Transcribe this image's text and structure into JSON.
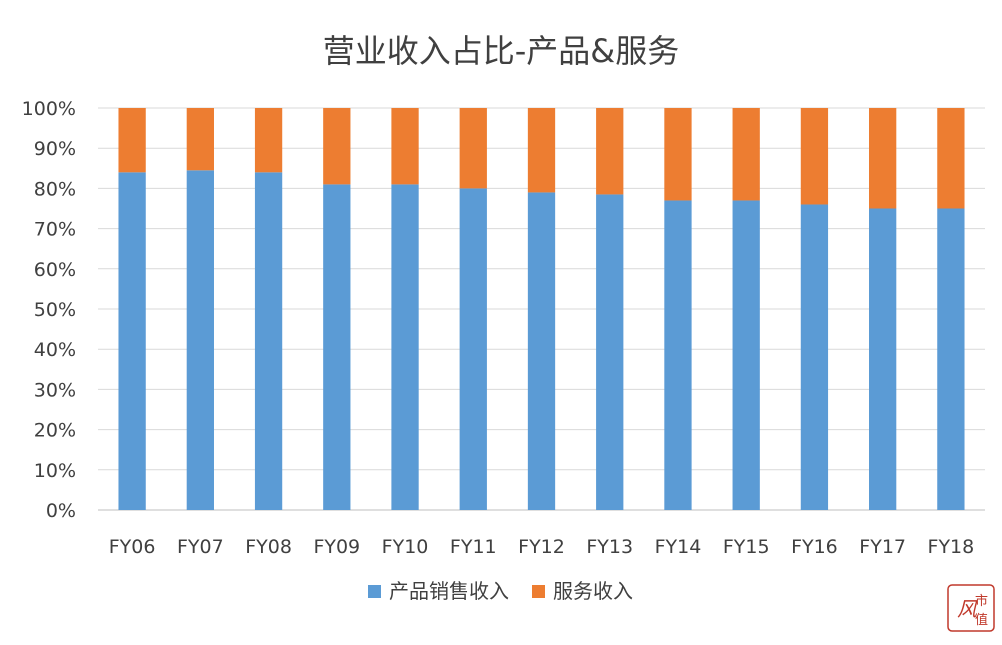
{
  "chart_data": {
    "type": "bar",
    "stacked": true,
    "title": "营业收入占比-产品&服务",
    "categories": [
      "FY06",
      "FY07",
      "FY08",
      "FY09",
      "FY10",
      "FY11",
      "FY12",
      "FY13",
      "FY14",
      "FY15",
      "FY16",
      "FY17",
      "FY18"
    ],
    "series": [
      {
        "name": "产品销售收入",
        "color": "#5B9BD5",
        "values": [
          84,
          84.5,
          84,
          81,
          81,
          80,
          79,
          78.5,
          77,
          77,
          76,
          75,
          75
        ]
      },
      {
        "name": "服务收入",
        "color": "#ED7D31",
        "values": [
          16,
          15.5,
          16,
          19,
          19,
          20,
          21,
          21.5,
          23,
          23,
          24,
          25,
          25
        ]
      }
    ],
    "ylim": [
      0,
      100
    ],
    "yticks": [
      "0%",
      "10%",
      "20%",
      "30%",
      "40%",
      "50%",
      "60%",
      "70%",
      "80%",
      "90%",
      "100%"
    ],
    "grid": true,
    "legend_position": "bottom"
  },
  "watermark": {
    "logo_text": "市值风云"
  }
}
